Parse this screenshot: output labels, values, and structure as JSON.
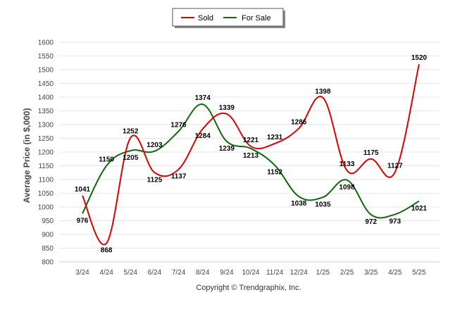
{
  "chart_data": {
    "type": "line",
    "categories": [
      "3/24",
      "4/24",
      "5/24",
      "6/24",
      "7/24",
      "8/24",
      "9/24",
      "10/24",
      "11/24",
      "12/24",
      "1/25",
      "2/25",
      "3/25",
      "4/25",
      "5/25"
    ],
    "series": [
      {
        "name": "Sold",
        "color": "#e00000",
        "values": [
          1041,
          868,
          1252,
          1125,
          1137,
          1284,
          1339,
          1221,
          1231,
          1286,
          1398,
          1133,
          1175,
          1127,
          1520
        ]
      },
      {
        "name": "For Sale",
        "color": "#0b6b0b",
        "values": [
          976,
          1150,
          1205,
          1203,
          1276,
          1374,
          1239,
          1213,
          1152,
          1038,
          1035,
          1098,
          972,
          973,
          1021
        ]
      }
    ],
    "ylabel": "Average Price (in $,000)",
    "xlabel": "",
    "ylim": [
      800,
      1600
    ],
    "yticks": [
      800,
      850,
      900,
      950,
      1000,
      1050,
      1100,
      1150,
      1200,
      1250,
      1300,
      1350,
      1400,
      1450,
      1500,
      1550,
      1600
    ],
    "grid": true,
    "legend_position": "top-center",
    "footer": "Copyright © Trendgraphix, Inc."
  }
}
